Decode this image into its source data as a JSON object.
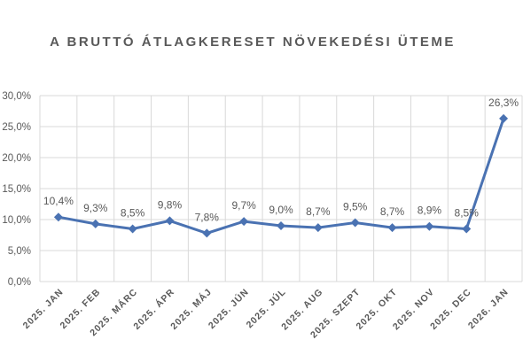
{
  "chart_data": {
    "type": "line",
    "title": "A BRUTTÓ ÁTLAGKERESET NÖVEKEDÉSI ÜTEME",
    "xlabel": "",
    "ylabel": "",
    "ylim": [
      0,
      30
    ],
    "ytick_values": [
      0,
      5,
      10,
      15,
      20,
      25,
      30
    ],
    "ytick_labels": [
      "0,0%",
      "5,0%",
      "10,0%",
      "15,0%",
      "20,0%",
      "25,0%",
      "30,0%"
    ],
    "categories": [
      "2025. JAN",
      "2025. FEB",
      "2025. MÁRC",
      "2025. ÁPR",
      "2025. MÁJ",
      "2025. JÚN",
      "2025. JÚL",
      "2025. AUG",
      "2025. SZEPT",
      "2025. OKT",
      "2025. NOV",
      "2025. DEC",
      "2026. JAN"
    ],
    "series": [
      {
        "values": [
          10.4,
          9.3,
          8.5,
          9.8,
          7.8,
          9.7,
          9.0,
          8.7,
          9.5,
          8.7,
          8.9,
          8.5,
          26.3
        ],
        "labels": [
          "10,4%",
          "9,3%",
          "8,5%",
          "9,8%",
          "7,8%",
          "9,7%",
          "9,0%",
          "8,7%",
          "9,5%",
          "8,7%",
          "8,9%",
          "8,5%",
          "26,3%"
        ]
      }
    ],
    "grid": true,
    "colors": {
      "line": "#4a72b2",
      "grid": "#d9d9d9",
      "text": "#595959"
    }
  }
}
